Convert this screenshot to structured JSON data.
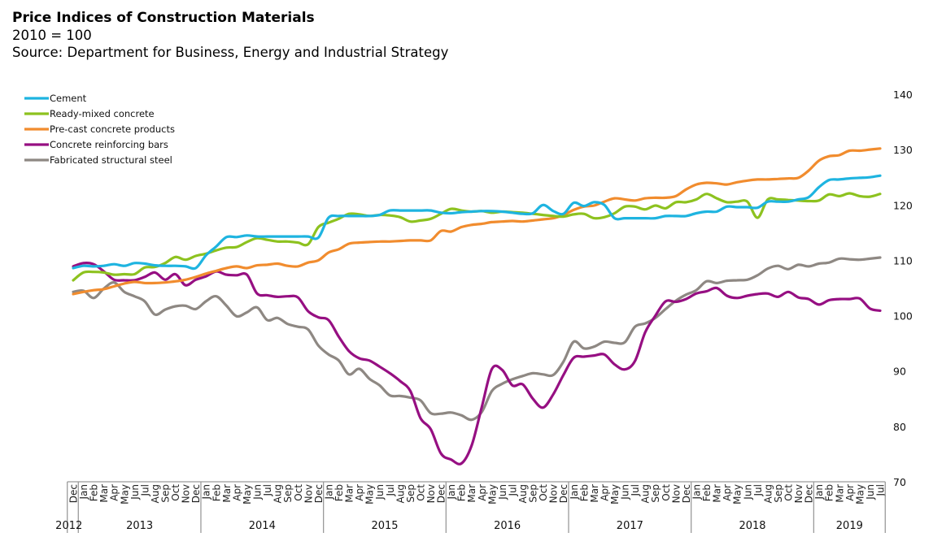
{
  "header": {
    "title": "Price Indices of Construction Materials",
    "base": "2010 = 100",
    "source": "Source: Department for Business, Energy and Industrial Strategy"
  },
  "chart_data": {
    "type": "line",
    "title": "Price Indices of Construction Materials",
    "subtitle": "2010 = 100",
    "ylim": [
      70,
      140
    ],
    "yticks": [
      "140",
      "130",
      "120",
      "110",
      "100",
      "90",
      "80",
      "70"
    ],
    "ytick_values": [
      140,
      130,
      120,
      110,
      100,
      90,
      80,
      70
    ],
    "y_axis_side": "right",
    "grid": false,
    "legend_position": "top-left",
    "months": [
      "Dec",
      "Jan",
      "Feb",
      "Mar",
      "Apr",
      "May",
      "Jun",
      "Jul",
      "Aug",
      "Sep",
      "Oct",
      "Nov",
      "Dec",
      "Jan",
      "Feb",
      "Mar",
      "Apr",
      "May",
      "Jun",
      "Jul",
      "Aug",
      "Sep",
      "Oct",
      "Nov",
      "Dec",
      "Jan",
      "Feb",
      "Mar",
      "Apr",
      "May",
      "Jun",
      "Jul",
      "Aug",
      "Sep",
      "Oct",
      "Nov",
      "Dec",
      "Jan",
      "Feb",
      "Mar",
      "Apr",
      "May",
      "Jun",
      "Jul",
      "Aug",
      "Sep",
      "Oct",
      "Nov",
      "Dec",
      "Jan",
      "Feb",
      "Mar",
      "Apr",
      "May",
      "Jun",
      "Jul",
      "Aug",
      "Sep",
      "Oct",
      "Nov",
      "Dec",
      "Jan",
      "Feb",
      "Mar",
      "Apr",
      "May",
      "Jun",
      "Jul",
      "Aug",
      "Sep",
      "Oct",
      "Nov",
      "Dec",
      "Jan",
      "Feb",
      "Mar",
      "Apr",
      "May",
      "Jun",
      "Jul"
    ],
    "years": [
      {
        "label": "2012",
        "start": 0,
        "end": 0
      },
      {
        "label": "2013",
        "start": 1,
        "end": 12
      },
      {
        "label": "2014",
        "start": 13,
        "end": 24
      },
      {
        "label": "2015",
        "start": 25,
        "end": 36
      },
      {
        "label": "2016",
        "start": 37,
        "end": 48
      },
      {
        "label": "2017",
        "start": 49,
        "end": 60
      },
      {
        "label": "2018",
        "start": 61,
        "end": 72
      },
      {
        "label": "2019",
        "start": 73,
        "end": 79
      }
    ],
    "series": [
      {
        "name": "Cement",
        "color": "#1EB4E0",
        "values": [
          108.6,
          109.0,
          108.9,
          109.0,
          109.3,
          109.0,
          109.5,
          109.4,
          109.1,
          109.0,
          109.0,
          108.9,
          108.6,
          110.9,
          112.5,
          114.2,
          114.2,
          114.5,
          114.3,
          114.3,
          114.3,
          114.3,
          114.3,
          114.3,
          114.1,
          117.7,
          118.0,
          118.0,
          118.0,
          118.0,
          118.2,
          119.0,
          119.0,
          119.0,
          119.0,
          119.0,
          118.6,
          118.5,
          118.7,
          118.8,
          118.9,
          118.9,
          118.8,
          118.6,
          118.4,
          118.5,
          120.0,
          118.9,
          118.4,
          120.4,
          119.8,
          120.5,
          120.0,
          117.6,
          117.6,
          117.6,
          117.6,
          117.6,
          118.0,
          118.0,
          118.0,
          118.5,
          118.8,
          118.8,
          119.7,
          119.6,
          119.6,
          119.5,
          120.6,
          120.6,
          120.6,
          121.0,
          121.4,
          123.2,
          124.5,
          124.6,
          124.8,
          124.9,
          125.0,
          125.3
        ]
      },
      {
        "name": "Ready-mixed concrete",
        "color": "#8DC21F",
        "values": [
          106.4,
          107.8,
          107.9,
          107.8,
          107.4,
          107.5,
          107.5,
          108.7,
          108.8,
          109.5,
          110.6,
          110.1,
          110.8,
          111.2,
          111.8,
          112.3,
          112.4,
          113.3,
          114.0,
          113.7,
          113.4,
          113.4,
          113.2,
          112.9,
          116.0,
          116.8,
          117.5,
          118.4,
          118.3,
          118.0,
          118.2,
          118.1,
          117.8,
          117.0,
          117.2,
          117.5,
          118.4,
          119.3,
          119.0,
          118.8,
          118.9,
          118.6,
          118.8,
          118.7,
          118.6,
          118.4,
          118.2,
          118.0,
          117.9,
          118.3,
          118.4,
          117.6,
          117.8,
          118.5,
          119.7,
          119.7,
          119.2,
          119.9,
          119.4,
          120.5,
          120.5,
          121.0,
          122.0,
          121.2,
          120.5,
          120.6,
          120.6,
          117.7,
          121.0,
          121.0,
          120.9,
          120.8,
          120.7,
          120.8,
          121.9,
          121.6,
          122.1,
          121.6,
          121.5,
          122.0
        ]
      },
      {
        "name": "Pre-cast concrete products",
        "color": "#F18C2E",
        "values": [
          103.9,
          104.3,
          104.6,
          104.8,
          105.3,
          105.8,
          106.1,
          105.9,
          105.9,
          106.0,
          106.2,
          106.5,
          107.0,
          107.6,
          108.1,
          108.6,
          108.9,
          108.6,
          109.1,
          109.2,
          109.4,
          109.0,
          108.9,
          109.6,
          110.0,
          111.4,
          112.0,
          113.0,
          113.2,
          113.3,
          113.4,
          113.4,
          113.5,
          113.6,
          113.6,
          113.6,
          115.3,
          115.2,
          116.0,
          116.4,
          116.6,
          116.9,
          117.0,
          117.1,
          117.0,
          117.2,
          117.4,
          117.6,
          118.2,
          119.1,
          119.7,
          119.9,
          120.6,
          121.2,
          121.0,
          120.8,
          121.2,
          121.3,
          121.3,
          121.6,
          122.8,
          123.7,
          124.0,
          123.9,
          123.7,
          124.1,
          124.4,
          124.6,
          124.6,
          124.7,
          124.8,
          124.9,
          126.2,
          128.0,
          128.8,
          129.0,
          129.8,
          129.8,
          130.0,
          130.2
        ]
      },
      {
        "name": "Concrete reinforcing bars",
        "color": "#960F82",
        "values": [
          108.9,
          109.5,
          109.3,
          108.0,
          106.5,
          106.4,
          106.4,
          107.0,
          107.8,
          106.5,
          107.5,
          105.5,
          106.5,
          107.1,
          108.0,
          107.4,
          107.3,
          107.4,
          104.0,
          103.7,
          103.4,
          103.5,
          103.3,
          100.8,
          99.7,
          99.2,
          96.2,
          93.6,
          92.3,
          91.9,
          90.8,
          89.6,
          88.2,
          86.4,
          81.5,
          79.5,
          75.1,
          74.0,
          73.3,
          76.5,
          83.5,
          90.4,
          90.2,
          87.4,
          87.6,
          85.0,
          83.4,
          85.8,
          89.3,
          92.4,
          92.6,
          92.8,
          93.0,
          91.2,
          90.3,
          91.8,
          97.0,
          100.0,
          102.6,
          102.5,
          103.0,
          104.0,
          104.4,
          105.0,
          103.6,
          103.2,
          103.6,
          103.9,
          104.0,
          103.4,
          104.3,
          103.3,
          103.0,
          102.0,
          102.8,
          103.0,
          103.0,
          103.1,
          101.3,
          100.9
        ]
      },
      {
        "name": "Fabricated structural steel",
        "color": "#8E8883",
        "values": [
          104.3,
          104.5,
          103.2,
          104.9,
          106.0,
          104.3,
          103.5,
          102.6,
          100.2,
          101.1,
          101.7,
          101.8,
          101.2,
          102.6,
          103.5,
          101.8,
          99.9,
          100.6,
          101.5,
          99.2,
          99.6,
          98.5,
          98.0,
          97.5,
          94.6,
          93.0,
          91.9,
          89.4,
          90.4,
          88.6,
          87.4,
          85.6,
          85.5,
          85.2,
          84.7,
          82.4,
          82.3,
          82.5,
          82.0,
          81.2,
          82.6,
          86.4,
          87.7,
          88.5,
          89.1,
          89.6,
          89.4,
          89.3,
          91.7,
          95.3,
          94.1,
          94.4,
          95.3,
          95.1,
          95.2,
          98.0,
          98.6,
          99.6,
          101.2,
          102.7,
          103.8,
          104.6,
          106.2,
          105.9,
          106.3,
          106.4,
          106.5,
          107.3,
          108.5,
          109.0,
          108.4,
          109.2,
          108.9,
          109.4,
          109.6,
          110.3,
          110.2,
          110.1,
          110.3,
          110.5
        ]
      }
    ]
  }
}
